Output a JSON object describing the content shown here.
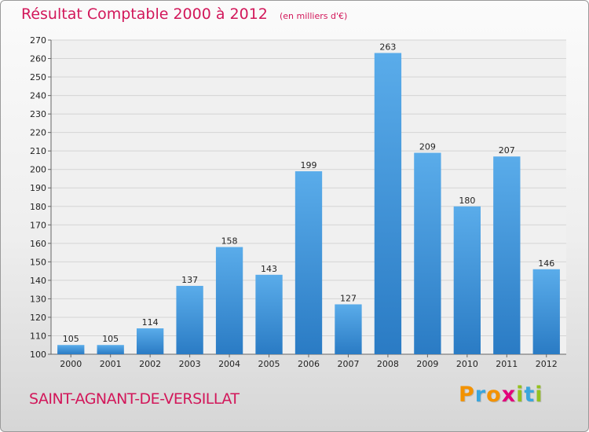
{
  "title": "Résultat Comptable 2000 à 2012",
  "subtitle": "(en milliers d'€)",
  "commune": "SAINT-AGNANT-DE-VERSILLAT",
  "brand": {
    "letters": [
      "P",
      "r",
      "o",
      "x",
      "i",
      "t",
      "i"
    ],
    "colors": [
      "#f39200",
      "#3aa6dd",
      "#f39200",
      "#e2007a",
      "#95c11f",
      "#3aa6dd",
      "#95c11f"
    ]
  },
  "chart_data": {
    "type": "bar",
    "categories": [
      "2000",
      "2001",
      "2002",
      "2003",
      "2004",
      "2005",
      "2006",
      "2007",
      "2008",
      "2009",
      "2010",
      "2011",
      "2012"
    ],
    "values": [
      105,
      105,
      114,
      137,
      158,
      143,
      199,
      127,
      263,
      209,
      180,
      207,
      146
    ],
    "ylim": [
      100,
      270
    ],
    "yticks": [
      100,
      110,
      120,
      130,
      140,
      150,
      160,
      170,
      180,
      190,
      200,
      210,
      220,
      230,
      240,
      250,
      260,
      270
    ],
    "grid": true,
    "bar_color": "#3d8fd6"
  }
}
